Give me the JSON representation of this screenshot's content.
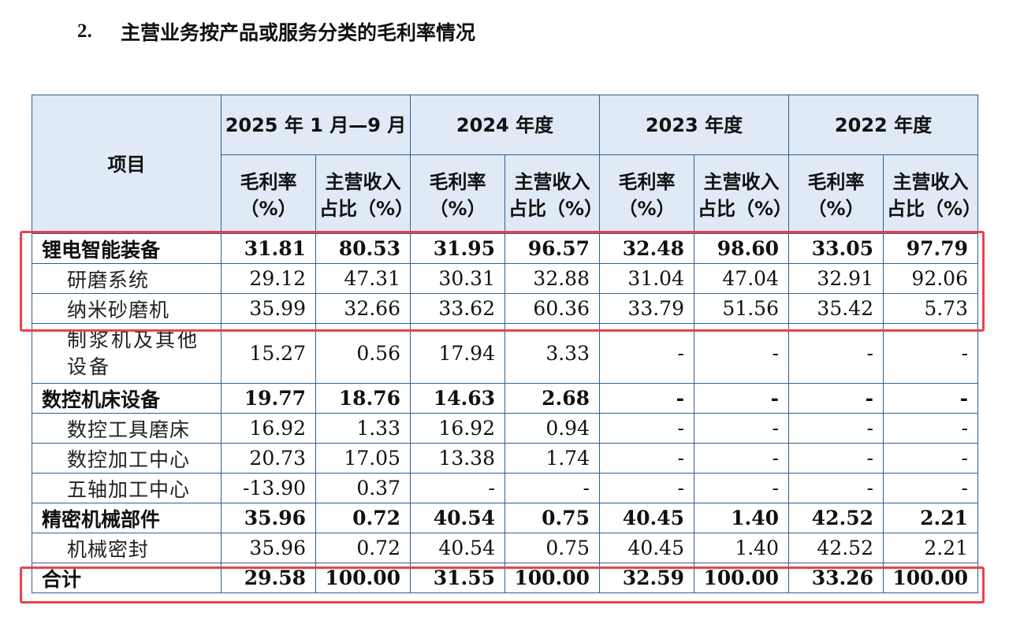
{
  "heading": {
    "number": "2.",
    "title": "主营业务按产品或服务分类的毛利率情况"
  },
  "table": {
    "item_header": "项目",
    "periods": [
      "2025 年 1 月—9 月",
      "2024 年度",
      "2023 年度",
      "2022 年度"
    ],
    "sub_headers": {
      "margin": "毛利率（%）",
      "share": "主营收入占比（%）"
    },
    "rows": [
      {
        "label": "锂电智能装备",
        "bold": true,
        "cells": [
          "31.81",
          "80.53",
          "31.95",
          "96.57",
          "32.48",
          "98.60",
          "33.05",
          "97.79"
        ]
      },
      {
        "label": "研磨系统",
        "bold": false,
        "cells": [
          "29.12",
          "47.31",
          "30.31",
          "32.88",
          "31.04",
          "47.04",
          "32.91",
          "92.06"
        ]
      },
      {
        "label": "纳米砂磨机",
        "bold": false,
        "cells": [
          "35.99",
          "32.66",
          "33.62",
          "60.36",
          "33.79",
          "51.56",
          "35.42",
          "5.73"
        ]
      },
      {
        "label": "制浆机及其他设备",
        "bold": false,
        "tall": true,
        "cells": [
          "15.27",
          "0.56",
          "17.94",
          "3.33",
          "-",
          "-",
          "-",
          "-"
        ]
      },
      {
        "label": "数控机床设备",
        "bold": true,
        "cells": [
          "19.77",
          "18.76",
          "14.63",
          "2.68",
          "-",
          "-",
          "-",
          "-"
        ]
      },
      {
        "label": "数控工具磨床",
        "bold": false,
        "cells": [
          "16.92",
          "1.33",
          "16.92",
          "0.94",
          "-",
          "-",
          "-",
          "-"
        ]
      },
      {
        "label": "数控加工中心",
        "bold": false,
        "cells": [
          "20.73",
          "17.05",
          "13.38",
          "1.74",
          "-",
          "-",
          "-",
          "-"
        ]
      },
      {
        "label": "五轴加工中心",
        "bold": false,
        "cells": [
          "-13.90",
          "0.37",
          "-",
          "-",
          "-",
          "-",
          "-",
          "-"
        ]
      },
      {
        "label": "精密机械部件",
        "bold": true,
        "cells": [
          "35.96",
          "0.72",
          "40.54",
          "0.75",
          "40.45",
          "1.40",
          "42.52",
          "2.21"
        ]
      },
      {
        "label": "机械密封",
        "bold": false,
        "cells": [
          "35.96",
          "0.72",
          "40.54",
          "0.75",
          "40.45",
          "1.40",
          "42.52",
          "2.21"
        ]
      },
      {
        "label": "合计",
        "bold": true,
        "cells": [
          "29.58",
          "100.00",
          "31.55",
          "100.00",
          "32.59",
          "100.00",
          "33.26",
          "100.00"
        ]
      }
    ]
  },
  "highlight_color": "#e8424f",
  "header_fill": "#dfeaf6",
  "border_color": "#2f5f8f"
}
